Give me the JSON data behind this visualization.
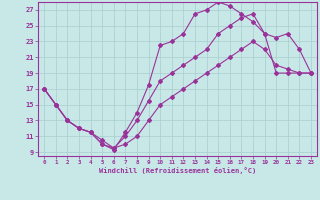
{
  "xlabel": "Windchill (Refroidissement éolien,°C)",
  "bg_color": "#c8e8e8",
  "grid_color": "#a8cccc",
  "line_color": "#993399",
  "xlim": [
    -0.5,
    23.5
  ],
  "ylim": [
    8.5,
    28.0
  ],
  "xtick_vals": [
    0,
    1,
    2,
    3,
    4,
    5,
    6,
    7,
    8,
    9,
    10,
    11,
    12,
    13,
    14,
    15,
    16,
    17,
    18,
    19,
    20,
    21,
    22,
    23
  ],
  "ytick_vals": [
    9,
    11,
    13,
    15,
    17,
    19,
    21,
    23,
    25,
    27
  ],
  "curve1_x": [
    0,
    1,
    2,
    3,
    4,
    5,
    6,
    7,
    8,
    9,
    10,
    11,
    12,
    13,
    14,
    15,
    16,
    17,
    18,
    19,
    20,
    21,
    22,
    23
  ],
  "curve1_y": [
    17,
    15,
    13,
    12,
    11.5,
    10,
    9.3,
    11.5,
    14,
    17.5,
    22.5,
    23,
    24,
    26.5,
    27,
    28,
    27.5,
    26.5,
    25.5,
    24,
    19,
    19,
    19,
    19
  ],
  "curve2_x": [
    0,
    1,
    2,
    3,
    4,
    5,
    6,
    7,
    8,
    9,
    10,
    11,
    12,
    13,
    14,
    15,
    16,
    17,
    18,
    19,
    20,
    21,
    22,
    23
  ],
  "curve2_y": [
    17,
    15,
    13,
    12,
    11.5,
    10,
    9.5,
    11,
    13,
    15.5,
    18,
    19,
    20,
    21,
    22,
    24,
    25,
    26,
    26.5,
    24,
    23.5,
    24,
    22,
    19
  ],
  "curve3_x": [
    0,
    1,
    2,
    3,
    4,
    5,
    6,
    7,
    8,
    9,
    10,
    11,
    12,
    13,
    14,
    15,
    16,
    17,
    18,
    19,
    20,
    21,
    22,
    23
  ],
  "curve3_y": [
    17,
    15,
    13,
    12,
    11.5,
    10.5,
    9.5,
    10,
    11,
    13,
    15,
    16,
    17,
    18,
    19,
    20,
    21,
    22,
    23,
    22,
    20,
    19.5,
    19,
    19
  ]
}
